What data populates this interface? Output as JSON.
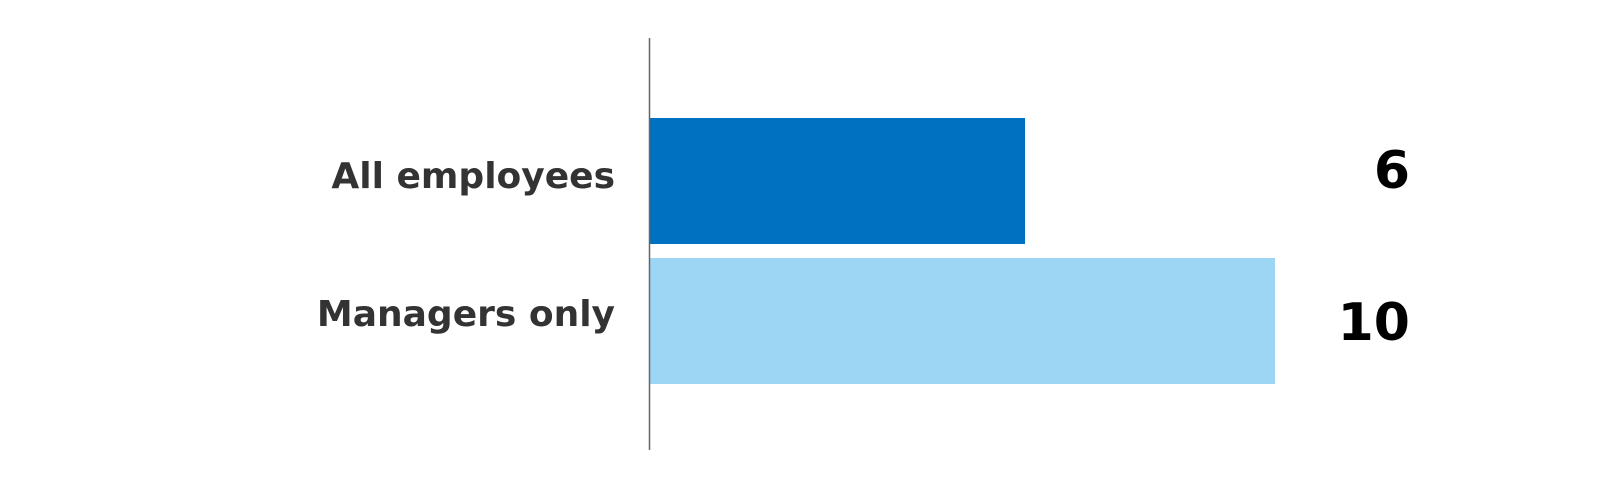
{
  "chart_data": {
    "type": "bar",
    "orientation": "horizontal",
    "categories": [
      "All employees",
      "Managers only"
    ],
    "values": [
      6,
      10
    ],
    "colors": [
      "#0070C0",
      "#9DD6F4"
    ],
    "value_label_color": "#000000",
    "category_label_color": "#333333",
    "axis_color": "#666666",
    "xlim": [
      0,
      10
    ],
    "grid": false,
    "legend": "none",
    "title": "",
    "xlabel": "",
    "ylabel": ""
  }
}
